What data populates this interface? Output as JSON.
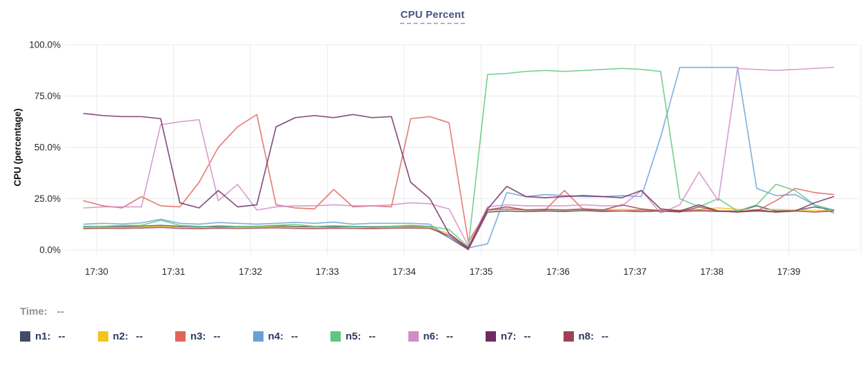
{
  "readout": {
    "label": "Time:",
    "value": "--"
  },
  "legend": {
    "items": [
      {
        "label": "n1:",
        "value": "--"
      },
      {
        "label": "n2:",
        "value": "--"
      },
      {
        "label": "n3:",
        "value": "--"
      },
      {
        "label": "n4:",
        "value": "--"
      },
      {
        "label": "n5:",
        "value": "--"
      },
      {
        "label": "n6:",
        "value": "--"
      },
      {
        "label": "n7:",
        "value": "--"
      },
      {
        "label": "n8:",
        "value": "--"
      }
    ]
  },
  "chart_data": {
    "type": "line",
    "title": "CPU Percent",
    "xlabel": "",
    "ylabel": "CPU (percentage)",
    "ylim": [
      0,
      100
    ],
    "grid": true,
    "legend_position": "bottom",
    "y_ticks": [
      {
        "label": "0.0%",
        "value": 0
      },
      {
        "label": "25.0%",
        "value": 25
      },
      {
        "label": "50.0%",
        "value": 50
      },
      {
        "label": "75.0%",
        "value": 75
      },
      {
        "label": "100.0%",
        "value": 100
      }
    ],
    "x_ticks": [
      "17:30",
      "17:31",
      "17:32",
      "17:33",
      "17:34",
      "17:35",
      "17:36",
      "17:37",
      "17:38",
      "17:39"
    ],
    "x": [
      "17:29:50",
      "17:30:05",
      "17:30:20",
      "17:30:35",
      "17:30:50",
      "17:31:05",
      "17:31:20",
      "17:31:35",
      "17:31:50",
      "17:32:05",
      "17:32:20",
      "17:32:35",
      "17:32:50",
      "17:33:05",
      "17:33:20",
      "17:33:35",
      "17:33:50",
      "17:34:05",
      "17:34:20",
      "17:34:35",
      "17:34:50",
      "17:35:05",
      "17:35:20",
      "17:35:35",
      "17:35:50",
      "17:36:05",
      "17:36:20",
      "17:36:35",
      "17:36:50",
      "17:37:05",
      "17:37:20",
      "17:37:35",
      "17:37:50",
      "17:38:05",
      "17:38:20",
      "17:38:35",
      "17:38:50",
      "17:39:05",
      "17:39:20",
      "17:39:35"
    ],
    "series": [
      {
        "name": "n1",
        "color": "#3f4d67",
        "values": [
          11.3,
          11.5,
          11.4,
          11.6,
          12,
          11.5,
          11.3,
          11.6,
          11.4,
          11.5,
          11.7,
          11.5,
          11.4,
          11.6,
          11.5,
          11.3,
          11.5,
          11.6,
          11.4,
          6,
          0.2,
          18.5,
          19,
          18.7,
          19,
          18.8,
          19.2,
          18.8,
          19,
          18.7,
          19,
          18.8,
          19.1,
          18.8,
          19,
          21.5,
          19,
          19.2,
          21,
          19.5
        ]
      },
      {
        "name": "n2",
        "color": "#f2c51d",
        "values": [
          10.8,
          11,
          10.9,
          11.2,
          11.5,
          11,
          10.8,
          11.1,
          10.9,
          11,
          11.2,
          11,
          10.9,
          11.1,
          11,
          10.8,
          11,
          11.1,
          10.9,
          8,
          1,
          19.5,
          19.8,
          19.5,
          19.7,
          19.5,
          19.8,
          19.6,
          19.8,
          19.5,
          19.7,
          19.5,
          19.8,
          20.5,
          19.8,
          19.6,
          19.8,
          19.5,
          19.3,
          19
        ]
      },
      {
        "name": "n3",
        "color": "#e0645a",
        "values": [
          24,
          21.5,
          20.5,
          26,
          21.5,
          21,
          33,
          50,
          60,
          66,
          22,
          20.5,
          20,
          29.5,
          21,
          21.5,
          21,
          64,
          65,
          62,
          4,
          19.5,
          20,
          19.5,
          19.5,
          29,
          19.5,
          19.5,
          19,
          19.5,
          19,
          19,
          19.5,
          19,
          19,
          19,
          24,
          30,
          28,
          27
        ]
      },
      {
        "name": "n4",
        "color": "#66a1d6",
        "values": [
          12.6,
          13,
          12.7,
          13.2,
          15,
          13,
          12.6,
          13.4,
          13,
          12.6,
          13,
          13.5,
          13,
          13.6,
          12.6,
          13,
          13,
          13,
          12.6,
          6,
          1,
          3,
          28,
          26,
          27,
          26.5,
          26,
          26,
          26.5,
          26,
          55,
          89,
          89,
          89,
          89,
          30,
          26.5,
          27,
          22,
          18
        ]
      },
      {
        "name": "n5",
        "color": "#5ec67e",
        "values": [
          11.5,
          11.5,
          12,
          12,
          14.5,
          12,
          11.5,
          11,
          11.5,
          11.5,
          12,
          12.5,
          11.5,
          11,
          11.5,
          11,
          11.5,
          12,
          11.5,
          10,
          1.5,
          85.5,
          86,
          87,
          87.5,
          87,
          87.5,
          88,
          88.5,
          88,
          87,
          25,
          21,
          25,
          19,
          22,
          32,
          29,
          22,
          19.5
        ]
      },
      {
        "name": "n6",
        "color": "#d28cc6",
        "values": [
          20.5,
          21,
          21,
          21,
          61,
          62.5,
          63.5,
          24,
          32,
          19.5,
          21,
          21.5,
          21.5,
          22,
          21.5,
          21.5,
          22,
          23,
          22.5,
          20,
          2,
          21,
          22,
          21.5,
          21.5,
          21.5,
          22,
          21.5,
          21.5,
          29,
          18,
          22,
          38,
          24,
          88.5,
          88,
          87.5,
          88,
          88.5,
          89
        ]
      },
      {
        "name": "n7",
        "color": "#6e2a62",
        "values": [
          66.5,
          65.5,
          65,
          65,
          64,
          23,
          20.5,
          29,
          21,
          22,
          60,
          64.5,
          65.5,
          64.5,
          66,
          64.5,
          65,
          33,
          25,
          8,
          1,
          20,
          31,
          26,
          25.5,
          26,
          26.5,
          26,
          25.5,
          29,
          20,
          19,
          22,
          19,
          18.5,
          19.5,
          18.5,
          19,
          23,
          26
        ]
      },
      {
        "name": "n8",
        "color": "#9d4256",
        "values": [
          10.4,
          10.6,
          10.5,
          10.7,
          11,
          10.5,
          10.4,
          10.6,
          10.5,
          10.6,
          10.8,
          10.5,
          10.4,
          10.6,
          10.5,
          10.4,
          10.6,
          10.7,
          10.5,
          7,
          0.5,
          19.5,
          21,
          19.5,
          19.8,
          19.5,
          20,
          19.5,
          22,
          20,
          19,
          18.5,
          21,
          19,
          18.5,
          19,
          18.5,
          19,
          18.5,
          19
        ]
      }
    ]
  }
}
